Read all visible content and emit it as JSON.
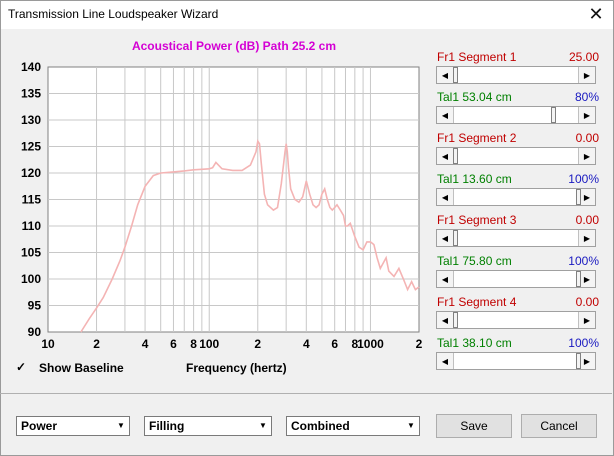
{
  "window": {
    "title": "Transmission Line Loudspeaker Wizard",
    "close_glyph": "✕"
  },
  "plot": {
    "title": "Acoustical Power (dB)   Path 25.2 cm"
  },
  "chart_data": {
    "type": "line",
    "title": "Acoustical Power (dB)   Path 25.2 cm",
    "xlabel": "Frequency (hertz)",
    "ylabel": "",
    "xscale": "log",
    "xlim": [
      10,
      2000
    ],
    "ylim": [
      90,
      140
    ],
    "grid": true,
    "y_ticks": [
      "140",
      "135",
      "130",
      "125",
      "120",
      "115",
      "110",
      "105",
      "100",
      "95",
      "90"
    ],
    "x_ticks": [
      {
        "v": 10,
        "label": "10"
      },
      {
        "v": 20,
        "label": "2"
      },
      {
        "v": 40,
        "label": "4"
      },
      {
        "v": 60,
        "label": "6"
      },
      {
        "v": 80,
        "label": "8"
      },
      {
        "v": 100,
        "label": "100"
      },
      {
        "v": 200,
        "label": "2"
      },
      {
        "v": 400,
        "label": "4"
      },
      {
        "v": 600,
        "label": "6"
      },
      {
        "v": 800,
        "label": "8"
      },
      {
        "v": 1000,
        "label": "1000"
      },
      {
        "v": 2000,
        "label": "2"
      }
    ],
    "line_color": "#f4b4b4",
    "series": [
      {
        "x": [
          16,
          18,
          20,
          22,
          25,
          28,
          30,
          33,
          36,
          40,
          45,
          50,
          60,
          70,
          80,
          90,
          100,
          105,
          110,
          120,
          140,
          160,
          180,
          195,
          200,
          205,
          210,
          220,
          230,
          250,
          265,
          280,
          295,
          300,
          305,
          310,
          320,
          340,
          360,
          380,
          400,
          420,
          440,
          460,
          480,
          500,
          520,
          540,
          560,
          580,
          600,
          620,
          650,
          680,
          700,
          720,
          750,
          800,
          850,
          900,
          950,
          1000,
          1050,
          1100,
          1150,
          1200,
          1250,
          1300,
          1400,
          1500,
          1600,
          1700,
          1800,
          1900,
          2000
        ],
        "y": [
          90,
          92.5,
          94.5,
          96.5,
          100,
          103.5,
          106,
          110,
          114,
          117.5,
          119.5,
          120,
          120.2,
          120.4,
          120.6,
          120.7,
          120.8,
          121,
          122,
          120.8,
          120.5,
          120.5,
          121.5,
          124,
          126,
          125.5,
          122,
          116,
          114,
          113,
          113.5,
          118,
          124,
          125.5,
          124,
          121,
          117,
          115,
          114.5,
          115.5,
          118.5,
          116,
          114,
          113.5,
          114,
          116,
          117,
          115,
          113.5,
          113,
          113.5,
          114,
          113,
          112,
          110,
          110,
          110.5,
          108,
          106,
          105.5,
          107,
          107,
          106.5,
          104,
          102,
          103,
          104,
          101.5,
          100.5,
          102,
          100,
          98,
          99.5,
          98,
          98.5
        ]
      }
    ]
  },
  "controls": [
    {
      "label": "Fr1  Segment 1",
      "value": "25.00",
      "color": "red",
      "pos": 0.0
    },
    {
      "label": "Tal1  53.04 cm",
      "value": "80%",
      "color": "green",
      "pos": 0.8
    },
    {
      "label": "Fr1  Segment 2",
      "value": "0.00",
      "color": "red",
      "pos": 0.0
    },
    {
      "label": "Tal1  13.60 cm",
      "value": "100%",
      "color": "green",
      "pos": 1.0
    },
    {
      "label": "Fr1  Segment 3",
      "value": "0.00",
      "color": "red",
      "pos": 0.0
    },
    {
      "label": "Tal1  75.80 cm",
      "value": "100%",
      "color": "green",
      "pos": 1.0
    },
    {
      "label": "Fr1  Segment 4",
      "value": "0.00",
      "color": "red",
      "pos": 0.0
    },
    {
      "label": "Tal1  38.10 cm",
      "value": "100%",
      "color": "green",
      "pos": 1.0
    }
  ],
  "show_baseline": {
    "label": "Show Baseline",
    "checked": true,
    "check_glyph": "✓"
  },
  "freq_label": "Frequency (hertz)",
  "dropdowns": [
    {
      "value": "Power",
      "arrow": "▼"
    },
    {
      "value": "Filling",
      "arrow": "▼"
    },
    {
      "value": "Combined",
      "arrow": "▼"
    }
  ],
  "buttons": {
    "save": "Save",
    "cancel": "Cancel"
  }
}
